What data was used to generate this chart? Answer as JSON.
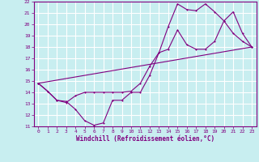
{
  "xlabel": "Windchill (Refroidissement éolien,°C)",
  "bg_color": "#c8eef0",
  "grid_color": "#ffffff",
  "line_color": "#800080",
  "xlim": [
    -0.5,
    23.5
  ],
  "ylim": [
    11,
    22
  ],
  "xticks": [
    0,
    1,
    2,
    3,
    4,
    5,
    6,
    7,
    8,
    9,
    10,
    11,
    12,
    13,
    14,
    15,
    16,
    17,
    18,
    19,
    20,
    21,
    22,
    23
  ],
  "yticks": [
    11,
    12,
    13,
    14,
    15,
    16,
    17,
    18,
    19,
    20,
    21,
    22
  ],
  "line1_x": [
    0,
    1,
    2,
    3,
    4,
    5,
    6,
    7,
    8,
    9,
    10,
    11,
    12,
    13,
    14,
    15,
    16,
    17,
    18,
    19,
    20,
    21,
    22,
    23
  ],
  "line1_y": [
    14.8,
    14.1,
    13.3,
    13.2,
    12.5,
    11.5,
    11.1,
    11.3,
    13.3,
    13.3,
    14.0,
    14.0,
    15.5,
    17.5,
    17.8,
    19.5,
    18.2,
    17.8,
    17.8,
    18.5,
    20.3,
    19.2,
    18.5,
    18.0
  ],
  "line2_x": [
    0,
    1,
    2,
    3,
    4,
    5,
    6,
    7,
    8,
    9,
    10,
    11,
    12,
    13,
    14,
    15,
    16,
    17,
    18,
    19,
    20,
    21,
    22,
    23
  ],
  "line2_y": [
    14.8,
    14.1,
    13.3,
    13.1,
    13.7,
    14.0,
    14.0,
    14.0,
    14.0,
    14.0,
    14.1,
    14.8,
    16.3,
    17.5,
    19.8,
    21.8,
    21.3,
    21.2,
    21.8,
    21.1,
    20.3,
    21.1,
    19.2,
    18.0
  ],
  "line3_x": [
    0,
    23
  ],
  "line3_y": [
    14.8,
    18.0
  ]
}
